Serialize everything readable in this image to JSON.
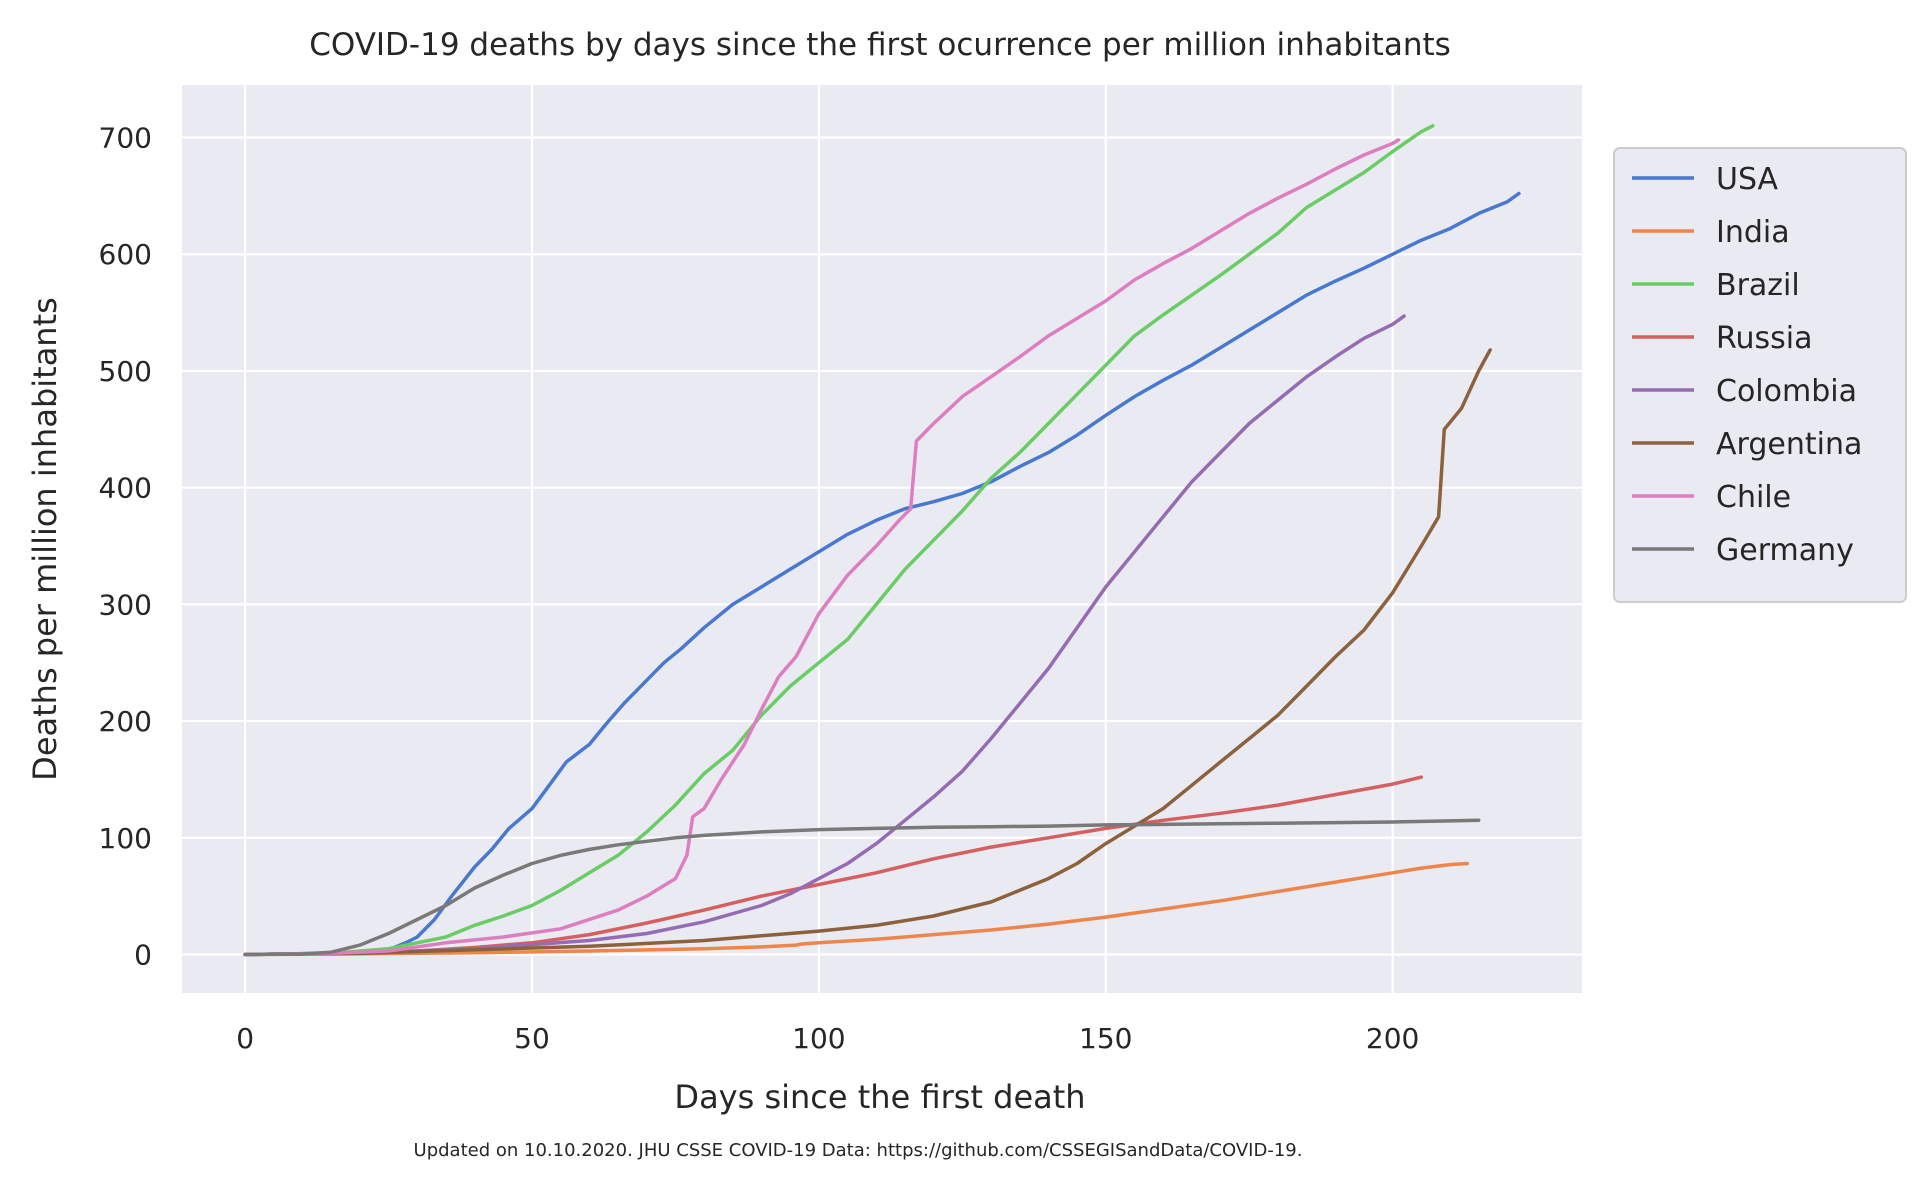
{
  "chart_data": {
    "type": "line",
    "title": "COVID-19 deaths by days since the first ocurrence per million inhabitants",
    "xlabel": "Days since the first death",
    "ylabel": "Deaths per million inhabitants",
    "footnote": "Updated on 10.10.2020. JHU CSSE COVID-19 Data: https://github.com/CSSEGISandData/COVID-19.",
    "xlim": [
      -11,
      233
    ],
    "ylim": [
      -33,
      745
    ],
    "x_ticks": [
      0,
      50,
      100,
      150,
      200
    ],
    "y_ticks": [
      0,
      100,
      200,
      300,
      400,
      500,
      600,
      700
    ],
    "grid": true,
    "legend_position": "right",
    "background_color": "#eaeaf2",
    "grid_color": "#ffffff",
    "series": [
      {
        "name": "USA",
        "color": "#4878d0",
        "points": [
          [
            0,
            0
          ],
          [
            15,
            1
          ],
          [
            25,
            4
          ],
          [
            28,
            10
          ],
          [
            30,
            15
          ],
          [
            33,
            30
          ],
          [
            36,
            50
          ],
          [
            40,
            75
          ],
          [
            43,
            90
          ],
          [
            46,
            108
          ],
          [
            50,
            125
          ],
          [
            53,
            145
          ],
          [
            56,
            165
          ],
          [
            60,
            180
          ],
          [
            63,
            198
          ],
          [
            66,
            215
          ],
          [
            70,
            235
          ],
          [
            73,
            250
          ],
          [
            76,
            262
          ],
          [
            80,
            280
          ],
          [
            85,
            300
          ],
          [
            90,
            315
          ],
          [
            95,
            330
          ],
          [
            100,
            345
          ],
          [
            105,
            360
          ],
          [
            110,
            372
          ],
          [
            115,
            382
          ],
          [
            120,
            388
          ],
          [
            125,
            395
          ],
          [
            130,
            405
          ],
          [
            135,
            418
          ],
          [
            140,
            430
          ],
          [
            145,
            445
          ],
          [
            150,
            462
          ],
          [
            155,
            478
          ],
          [
            160,
            492
          ],
          [
            165,
            505
          ],
          [
            170,
            520
          ],
          [
            175,
            535
          ],
          [
            180,
            550
          ],
          [
            185,
            565
          ],
          [
            190,
            577
          ],
          [
            195,
            588
          ],
          [
            200,
            600
          ],
          [
            205,
            612
          ],
          [
            210,
            622
          ],
          [
            215,
            635
          ],
          [
            220,
            645
          ],
          [
            222,
            652
          ]
        ]
      },
      {
        "name": "India",
        "color": "#ee854a",
        "points": [
          [
            0,
            0
          ],
          [
            20,
            0.5
          ],
          [
            40,
            1.5
          ],
          [
            60,
            3
          ],
          [
            80,
            5
          ],
          [
            90,
            6.5
          ],
          [
            96,
            8
          ],
          [
            97,
            9
          ],
          [
            100,
            10
          ],
          [
            110,
            13
          ],
          [
            120,
            17
          ],
          [
            130,
            21
          ],
          [
            140,
            26
          ],
          [
            150,
            32
          ],
          [
            160,
            39
          ],
          [
            170,
            46
          ],
          [
            180,
            54
          ],
          [
            190,
            62
          ],
          [
            200,
            70
          ],
          [
            205,
            74
          ],
          [
            210,
            77
          ],
          [
            213,
            78
          ]
        ]
      },
      {
        "name": "Brazil",
        "color": "#6acc64",
        "points": [
          [
            0,
            0
          ],
          [
            15,
            1
          ],
          [
            25,
            5
          ],
          [
            30,
            10
          ],
          [
            35,
            15
          ],
          [
            40,
            25
          ],
          [
            45,
            33
          ],
          [
            50,
            42
          ],
          [
            55,
            55
          ],
          [
            60,
            70
          ],
          [
            65,
            85
          ],
          [
            70,
            105
          ],
          [
            75,
            128
          ],
          [
            80,
            155
          ],
          [
            85,
            175
          ],
          [
            90,
            205
          ],
          [
            95,
            230
          ],
          [
            100,
            250
          ],
          [
            105,
            270
          ],
          [
            110,
            300
          ],
          [
            115,
            330
          ],
          [
            120,
            355
          ],
          [
            125,
            380
          ],
          [
            130,
            408
          ],
          [
            135,
            430
          ],
          [
            140,
            455
          ],
          [
            145,
            480
          ],
          [
            150,
            505
          ],
          [
            155,
            530
          ],
          [
            160,
            548
          ],
          [
            165,
            565
          ],
          [
            170,
            582
          ],
          [
            175,
            600
          ],
          [
            180,
            618
          ],
          [
            185,
            640
          ],
          [
            190,
            655
          ],
          [
            195,
            670
          ],
          [
            200,
            688
          ],
          [
            205,
            705
          ],
          [
            207,
            710
          ]
        ]
      },
      {
        "name": "Russia",
        "color": "#d65f5f",
        "points": [
          [
            0,
            0
          ],
          [
            20,
            1
          ],
          [
            30,
            3
          ],
          [
            40,
            6
          ],
          [
            50,
            10
          ],
          [
            60,
            17
          ],
          [
            70,
            27
          ],
          [
            80,
            38
          ],
          [
            90,
            50
          ],
          [
            100,
            60
          ],
          [
            110,
            70
          ],
          [
            120,
            82
          ],
          [
            130,
            92
          ],
          [
            140,
            100
          ],
          [
            150,
            108
          ],
          [
            160,
            115
          ],
          [
            170,
            121
          ],
          [
            180,
            128
          ],
          [
            190,
            137
          ],
          [
            200,
            146
          ],
          [
            205,
            152
          ]
        ]
      },
      {
        "name": "Colombia",
        "color": "#956cb4",
        "points": [
          [
            0,
            0
          ],
          [
            20,
            1
          ],
          [
            40,
            5
          ],
          [
            60,
            12
          ],
          [
            70,
            18
          ],
          [
            80,
            28
          ],
          [
            90,
            42
          ],
          [
            95,
            52
          ],
          [
            100,
            65
          ],
          [
            105,
            78
          ],
          [
            110,
            95
          ],
          [
            115,
            115
          ],
          [
            120,
            135
          ],
          [
            125,
            157
          ],
          [
            130,
            185
          ],
          [
            135,
            215
          ],
          [
            140,
            245
          ],
          [
            145,
            280
          ],
          [
            150,
            315
          ],
          [
            155,
            345
          ],
          [
            160,
            375
          ],
          [
            165,
            405
          ],
          [
            170,
            430
          ],
          [
            175,
            455
          ],
          [
            180,
            475
          ],
          [
            185,
            495
          ],
          [
            190,
            512
          ],
          [
            195,
            528
          ],
          [
            200,
            540
          ],
          [
            202,
            547
          ]
        ]
      },
      {
        "name": "Argentina",
        "color": "#8c613c",
        "points": [
          [
            0,
            0
          ],
          [
            20,
            1
          ],
          [
            40,
            4
          ],
          [
            60,
            7
          ],
          [
            80,
            12
          ],
          [
            100,
            20
          ],
          [
            110,
            25
          ],
          [
            120,
            33
          ],
          [
            130,
            45
          ],
          [
            140,
            65
          ],
          [
            145,
            78
          ],
          [
            150,
            95
          ],
          [
            155,
            110
          ],
          [
            160,
            125
          ],
          [
            165,
            145
          ],
          [
            170,
            165
          ],
          [
            175,
            185
          ],
          [
            180,
            205
          ],
          [
            185,
            230
          ],
          [
            190,
            255
          ],
          [
            195,
            278
          ],
          [
            200,
            310
          ],
          [
            205,
            350
          ],
          [
            208,
            375
          ],
          [
            209,
            450
          ],
          [
            212,
            468
          ],
          [
            215,
            500
          ],
          [
            217,
            518
          ]
        ]
      },
      {
        "name": "Chile",
        "color": "#dc7ec0",
        "points": [
          [
            0,
            0
          ],
          [
            15,
            1
          ],
          [
            25,
            3
          ],
          [
            35,
            10
          ],
          [
            45,
            15
          ],
          [
            55,
            22
          ],
          [
            65,
            38
          ],
          [
            70,
            50
          ],
          [
            75,
            65
          ],
          [
            77,
            85
          ],
          [
            78,
            118
          ],
          [
            80,
            125
          ],
          [
            83,
            150
          ],
          [
            87,
            180
          ],
          [
            90,
            210
          ],
          [
            93,
            238
          ],
          [
            96,
            255
          ],
          [
            100,
            292
          ],
          [
            105,
            325
          ],
          [
            110,
            350
          ],
          [
            114,
            372
          ],
          [
            116,
            382
          ],
          [
            117,
            440
          ],
          [
            120,
            455
          ],
          [
            125,
            478
          ],
          [
            130,
            495
          ],
          [
            135,
            512
          ],
          [
            140,
            530
          ],
          [
            145,
            545
          ],
          [
            150,
            560
          ],
          [
            155,
            578
          ],
          [
            160,
            592
          ],
          [
            165,
            605
          ],
          [
            170,
            620
          ],
          [
            175,
            635
          ],
          [
            180,
            648
          ],
          [
            185,
            660
          ],
          [
            190,
            673
          ],
          [
            195,
            685
          ],
          [
            200,
            695
          ],
          [
            201,
            698
          ]
        ]
      },
      {
        "name": "Germany",
        "color": "#797979",
        "points": [
          [
            0,
            0
          ],
          [
            10,
            0.5
          ],
          [
            15,
            2
          ],
          [
            20,
            8
          ],
          [
            25,
            18
          ],
          [
            30,
            30
          ],
          [
            35,
            42
          ],
          [
            40,
            57
          ],
          [
            45,
            68
          ],
          [
            50,
            78
          ],
          [
            55,
            85
          ],
          [
            60,
            90
          ],
          [
            65,
            94
          ],
          [
            70,
            97
          ],
          [
            75,
            100
          ],
          [
            80,
            102
          ],
          [
            90,
            105
          ],
          [
            100,
            107
          ],
          [
            110,
            108
          ],
          [
            120,
            109
          ],
          [
            130,
            109.5
          ],
          [
            140,
            110
          ],
          [
            150,
            111
          ],
          [
            160,
            111.5
          ],
          [
            170,
            112
          ],
          [
            180,
            112.5
          ],
          [
            190,
            113
          ],
          [
            200,
            113.5
          ],
          [
            210,
            114.5
          ],
          [
            215,
            115
          ]
        ]
      }
    ]
  }
}
